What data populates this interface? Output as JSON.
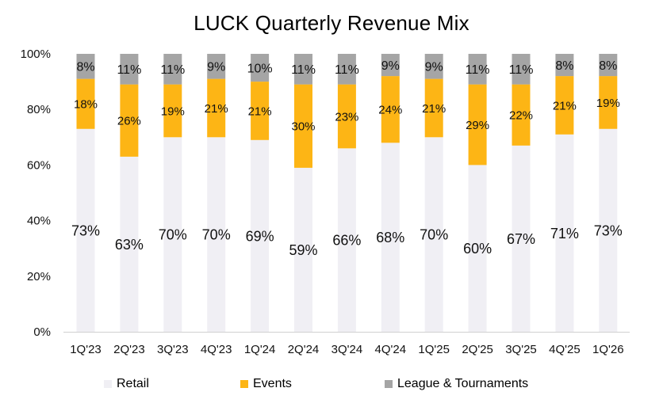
{
  "chart_data": {
    "type": "bar",
    "stacked": true,
    "title": "LUCK Quarterly Revenue Mix",
    "categories": [
      "1Q'23",
      "2Q'23",
      "3Q'23",
      "4Q'23",
      "1Q'24",
      "2Q'24",
      "3Q'24",
      "4Q'24",
      "1Q'25",
      "2Q'25",
      "3Q'25",
      "4Q'25",
      "1Q'26"
    ],
    "series": [
      {
        "name": "Retail",
        "color": "#f0eff4",
        "values": [
          73,
          63,
          70,
          70,
          69,
          59,
          66,
          68,
          70,
          60,
          67,
          71,
          73
        ],
        "labels": [
          "73%",
          "63%",
          "70%",
          "70%",
          "69%",
          "59%",
          "66%",
          "68%",
          "70%",
          "60%",
          "67%",
          "71%",
          "73%"
        ]
      },
      {
        "name": "Events",
        "color": "#fdb515",
        "values": [
          18,
          26,
          19,
          21,
          21,
          30,
          23,
          24,
          21,
          29,
          22,
          21,
          19
        ],
        "labels": [
          "18%",
          "26%",
          "19%",
          "21%",
          "21%",
          "30%",
          "23%",
          "24%",
          "21%",
          "29%",
          "22%",
          "21%",
          "19%"
        ]
      },
      {
        "name": "League & Tournaments",
        "color": "#a5a5a5",
        "values": [
          8,
          11,
          11,
          9,
          10,
          11,
          11,
          9,
          9,
          11,
          11,
          8,
          8
        ],
        "labels": [
          "8%",
          "11%",
          "11%",
          "9%",
          "10%",
          "11%",
          "11%",
          "9%",
          "9%",
          "11%",
          "11%",
          "8%",
          "8%"
        ]
      }
    ],
    "ylim": [
      0,
      100
    ],
    "yticks": [
      "0%",
      "20%",
      "40%",
      "60%",
      "80%",
      "100%"
    ],
    "xlabel": "",
    "ylabel": "",
    "legend_position": "bottom"
  }
}
